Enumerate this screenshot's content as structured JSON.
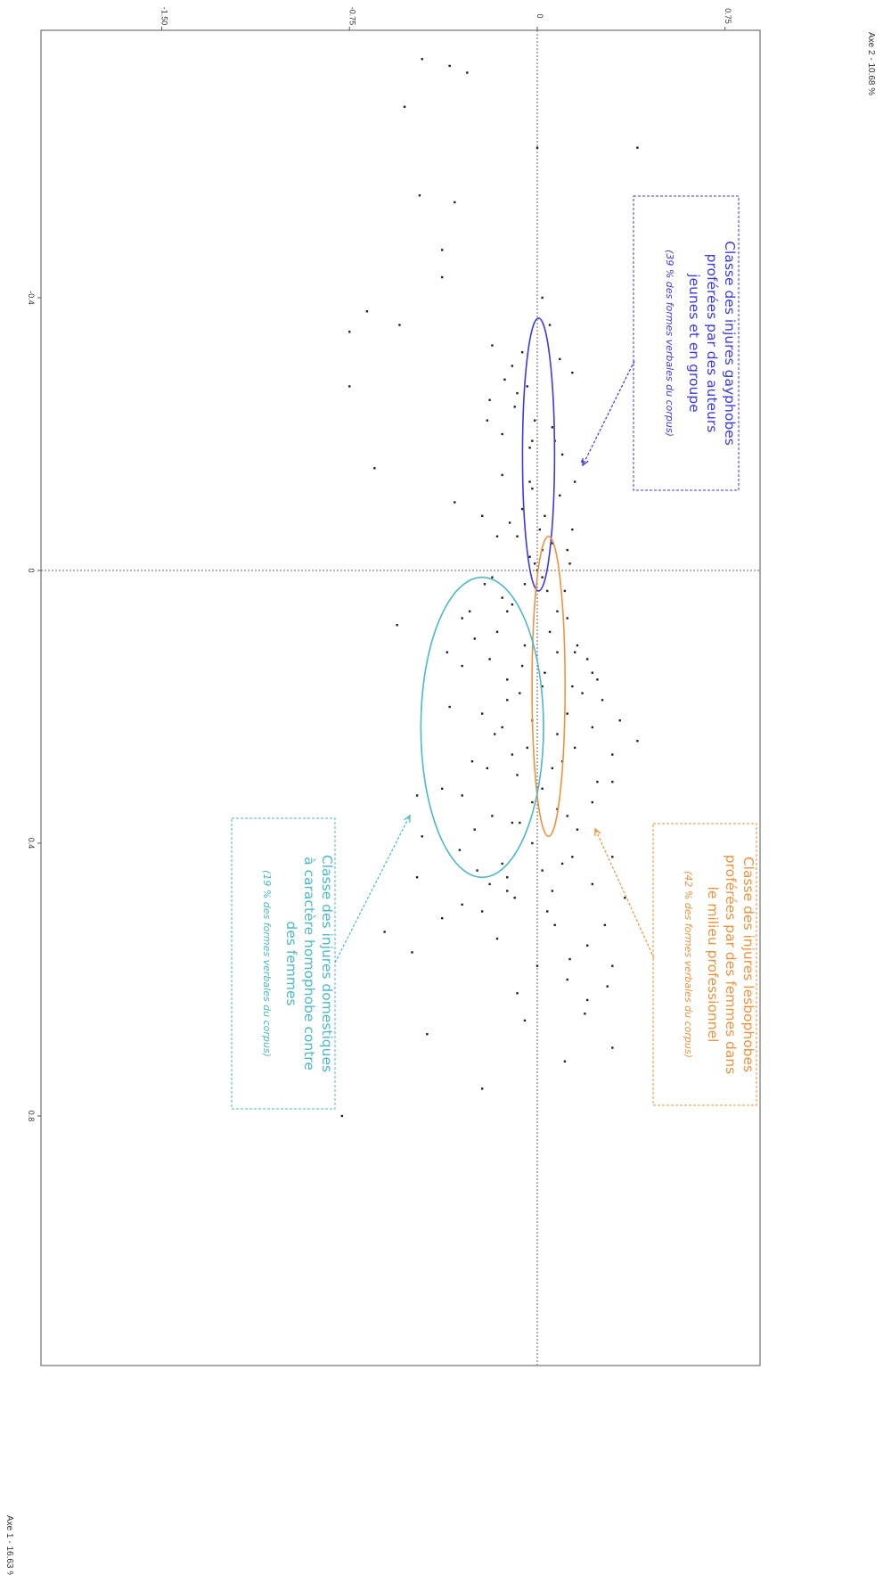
{
  "chart_data": {
    "type": "scatter",
    "axes": {
      "x": {
        "label": "Axe 1 - 16.63 %",
        "range": [
          -0.8,
          1.6
        ],
        "ticks": [
          -0.4,
          0,
          0.4,
          0.8
        ],
        "tick_labels": [
          "-0.4",
          "0",
          "0.4",
          "0.8"
        ]
      },
      "y": {
        "label": "Axe 2 - 10.68 %",
        "range": [
          -1.65,
          0.9
        ],
        "ticks": [
          -1.5,
          -0.75,
          0,
          0.75
        ],
        "tick_labels": [
          "-1.50",
          "-0.75",
          "0",
          "0.75"
        ]
      }
    },
    "origin_lines": "dotted",
    "grid": false,
    "orientation": "rotated 90° clockwise",
    "points": [
      [
        -0.74,
        -0.35
      ],
      [
        -0.73,
        -0.28
      ],
      [
        -0.75,
        -0.46
      ],
      [
        -0.68,
        -0.53
      ],
      [
        -0.62,
        0.0
      ],
      [
        -0.62,
        0.4
      ],
      [
        -0.55,
        -0.47
      ],
      [
        -0.54,
        -0.33
      ],
      [
        -0.47,
        -0.38
      ],
      [
        -0.43,
        -0.38
      ],
      [
        -0.4,
        0.02
      ],
      [
        -0.38,
        -0.68
      ],
      [
        -0.36,
        -0.55
      ],
      [
        -0.35,
        -0.75
      ],
      [
        -0.33,
        -0.18
      ],
      [
        -0.32,
        -0.06
      ],
      [
        -0.31,
        0.09
      ],
      [
        -0.3,
        -0.1
      ],
      [
        -0.28,
        -0.13
      ],
      [
        -0.27,
        -0.04
      ],
      [
        -0.26,
        -0.08
      ],
      [
        -0.25,
        -0.19
      ],
      [
        -0.24,
        -0.09
      ],
      [
        -0.22,
        -0.01
      ],
      [
        -0.21,
        0.06
      ],
      [
        -0.2,
        -0.14
      ],
      [
        -0.19,
        -0.02
      ],
      [
        -0.18,
        -0.03
      ],
      [
        -0.17,
        0.1
      ],
      [
        -0.15,
        -0.65
      ],
      [
        -0.14,
        -0.14
      ],
      [
        -0.13,
        -0.03
      ],
      [
        -0.12,
        -0.02
      ],
      [
        -0.1,
        -0.33
      ],
      [
        -0.09,
        -0.06
      ],
      [
        -0.08,
        0.03
      ],
      [
        -0.07,
        -0.11
      ],
      [
        -0.06,
        0.01
      ],
      [
        -0.05,
        -0.08
      ],
      [
        -0.04,
        0.06
      ],
      [
        -0.03,
        0.02
      ],
      [
        -0.02,
        -0.03
      ],
      [
        -0.01,
        -0.01
      ],
      [
        0.0,
        0.0
      ],
      [
        0.01,
        0.02
      ],
      [
        0.02,
        -0.05
      ],
      [
        0.03,
        0.04
      ],
      [
        0.04,
        -0.14
      ],
      [
        0.05,
        -0.1
      ],
      [
        0.06,
        0.08
      ],
      [
        0.07,
        0.12
      ],
      [
        0.08,
        -0.56
      ],
      [
        0.09,
        -0.16
      ],
      [
        0.1,
        -0.25
      ],
      [
        0.11,
        -0.05
      ],
      [
        0.12,
        0.15
      ],
      [
        0.13,
        -0.19
      ],
      [
        0.14,
        -0.3
      ],
      [
        0.15,
        0.22
      ],
      [
        0.16,
        -0.12
      ],
      [
        0.17,
        0.02
      ],
      [
        0.18,
        -0.07
      ],
      [
        0.19,
        0.26
      ],
      [
        0.2,
        -0.35
      ],
      [
        0.21,
        -0.22
      ],
      [
        0.22,
        -0.02
      ],
      [
        0.23,
        -0.14
      ],
      [
        0.24,
        0.08
      ],
      [
        0.25,
        0.4
      ],
      [
        0.26,
        -0.04
      ],
      [
        0.27,
        -0.1
      ],
      [
        0.28,
        -0.26
      ],
      [
        0.29,
        -0.2
      ],
      [
        0.3,
        -0.08
      ],
      [
        0.31,
        0.3
      ],
      [
        0.32,
        -0.38
      ],
      [
        0.33,
        -0.3
      ],
      [
        0.34,
        -0.02
      ],
      [
        0.35,
        0.08
      ],
      [
        0.36,
        -0.18
      ],
      [
        0.37,
        -0.1
      ],
      [
        0.38,
        -0.25
      ],
      [
        0.39,
        -0.46
      ],
      [
        0.4,
        -0.02
      ],
      [
        0.41,
        -0.31
      ],
      [
        0.42,
        0.14
      ],
      [
        0.43,
        -0.14
      ],
      [
        0.44,
        -0.24
      ],
      [
        0.45,
        -0.12
      ],
      [
        0.46,
        0.22
      ],
      [
        0.47,
        0.06
      ],
      [
        0.48,
        -0.09
      ],
      [
        0.49,
        -0.3
      ],
      [
        0.5,
        0.04
      ],
      [
        0.51,
        -0.38
      ],
      [
        0.52,
        0.07
      ],
      [
        0.53,
        -0.61
      ],
      [
        0.55,
        0.2
      ],
      [
        0.56,
        -0.5
      ],
      [
        0.58,
        0.0
      ],
      [
        0.6,
        0.12
      ],
      [
        0.63,
        0.2
      ],
      [
        0.65,
        0.19
      ],
      [
        0.68,
        -0.44
      ],
      [
        0.72,
        0.11
      ],
      [
        0.76,
        -0.22
      ],
      [
        0.8,
        -0.78
      ],
      [
        0.06,
        -0.27
      ],
      [
        -0.27,
        -0.75
      ],
      [
        0.12,
        -0.36
      ],
      [
        0.02,
        -0.21
      ],
      [
        0.18,
        0.18
      ],
      [
        -0.08,
        -0.22
      ],
      [
        0.34,
        0.22
      ],
      [
        -0.16,
        0.18
      ],
      [
        0.28,
        0.1
      ],
      [
        -0.36,
        0.05
      ],
      [
        0.44,
        0.02
      ],
      [
        0.24,
        -0.17
      ],
      [
        -0.11,
        0.09
      ],
      [
        0.07,
        -0.3
      ],
      [
        0.15,
        0.03
      ],
      [
        0.09,
        0.05
      ],
      [
        -0.06,
        0.14
      ],
      [
        0.38,
        0.16
      ],
      [
        0.01,
        -0.18
      ],
      [
        0.26,
        0.15
      ],
      [
        -0.22,
        -0.2
      ],
      [
        0.46,
        -0.19
      ],
      [
        -0.19,
        0.07
      ],
      [
        0.32,
        0.02
      ],
      [
        0.11,
        0.16
      ],
      [
        0.5,
        -0.22
      ],
      [
        -0.05,
        -0.16
      ],
      [
        0.21,
        0.12
      ],
      [
        0.03,
        0.11
      ],
      [
        0.14,
        -0.06
      ],
      [
        -0.29,
        0.14
      ],
      [
        0.37,
        -0.07
      ],
      [
        0.19,
        -0.12
      ],
      [
        -0.01,
        0.13
      ],
      [
        0.29,
        0.06
      ],
      [
        0.43,
        0.1
      ],
      [
        0.13,
        0.2
      ],
      [
        0.06,
        -0.12
      ],
      [
        -0.13,
        0.15
      ],
      [
        0.23,
        0.22
      ],
      [
        0.36,
        0.12
      ],
      [
        0.47,
        -0.12
      ],
      [
        0.54,
        -0.16
      ],
      [
        0.62,
        -0.08
      ],
      [
        0.66,
        -0.05
      ],
      [
        0.57,
        0.13
      ],
      [
        0.42,
        0.3
      ],
      [
        0.31,
        0.24
      ],
      [
        0.16,
        0.24
      ],
      [
        0.27,
        0.3
      ],
      [
        0.52,
        0.27
      ],
      [
        0.61,
        0.28
      ],
      [
        0.7,
        0.3
      ],
      [
        0.33,
        -0.48
      ],
      [
        0.45,
        -0.48
      ],
      [
        0.22,
        0.33
      ],
      [
        0.48,
        0.35
      ],
      [
        0.58,
        0.3
      ],
      [
        0.12,
        0.08
      ],
      [
        -0.03,
        0.12
      ],
      [
        0.17,
        0.14
      ]
    ],
    "annotations": [
      {
        "color": "#3a3ae6",
        "lines": [
          "Classe des injures gayphobes",
          "proférées par des auteurs",
          "jeunes et en groupe"
        ],
        "note": "(39 % des formes verbales du corpus)",
        "cx": -0.17,
        "cy": 0.005,
        "rx": 0.2,
        "ry": 0.064
      },
      {
        "color": "#f0913a",
        "lines": [
          "Classe des injures lesbophobes",
          "proférées par des femmes dans",
          "le milieu professionnel"
        ],
        "note": "(42 % des formes verbales du corpus)",
        "cx": 0.17,
        "cy": 0.045,
        "rx": 0.22,
        "ry": 0.066
      },
      {
        "color": "#4ab8c6",
        "lines": [
          "Classe des injures domestiques",
          "à caractère homophobe contre",
          "des femmes"
        ],
        "note": "(19 % des formes verbales du corpus)",
        "cx": 0.23,
        "cy": -0.22,
        "rx": 0.22,
        "ry": 0.245
      }
    ]
  }
}
